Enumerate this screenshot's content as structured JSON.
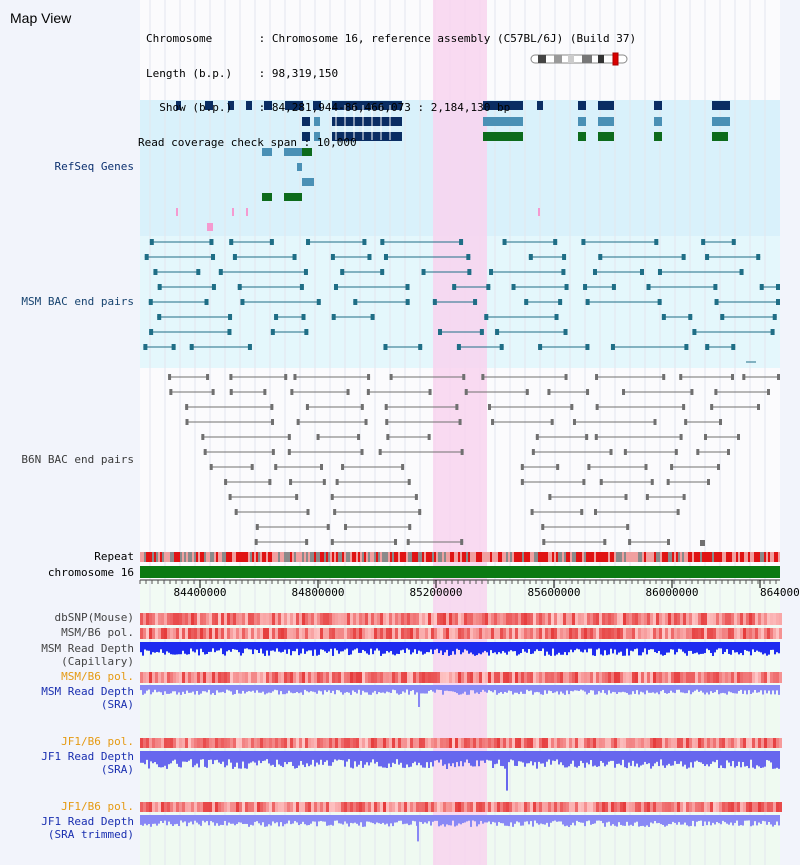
{
  "view_title": "Map View",
  "info": [
    {
      "label": "Chromosome       ",
      "value": "Chromosome 16, reference assembly (C57BL/6J) (Build 37)"
    },
    {
      "label": "Length (b.p.)    ",
      "value": "98,319,150"
    },
    {
      "label": "  Show (b.p.)    ",
      "value": "84,281,944-86,466,073 : 2,184,130 bp"
    },
    {
      "label": "Read coverage check span ",
      "value": "10,000"
    }
  ],
  "tracks": {
    "refseq": "RefSeq Genes",
    "msm_bac": "MSM BAC end pairs",
    "b6n_bac": "B6N BAC end pairs",
    "repeat": "Repeat",
    "chromosome": "chromosome 16",
    "dbsnp": "dbSNP(Mouse)",
    "msm_b6_pol": "MSM/B6 pol.",
    "msm_depth_cap_1": "MSM Read Depth",
    "msm_depth_cap_2": "(Capillary)",
    "msm_b6_pol_sra": "MSM/B6 pol.",
    "msm_depth_sra_1": "MSM Read Depth",
    "msm_depth_sra_2": "(SRA)",
    "jf1_b6_pol_1": "JF1/B6 pol.",
    "jf1_depth_sra_1": "JF1 Read Depth",
    "jf1_depth_sra_2": "(SRA)",
    "jf1_b6_pol_2": "JF1/B6 pol.",
    "jf1_depth_trim_1": "JF1 Read Depth",
    "jf1_depth_trim_2": "(SRA trimmed)"
  },
  "axis_ticks": [
    "84400000",
    "84800000",
    "85200000",
    "85600000",
    "86000000",
    "864000"
  ],
  "colors": {
    "refseq_bg": "#d9f1fb",
    "msm_bg": "#e4f7fc",
    "highlight": "#f8d4ef",
    "gene_dark": "#0a2d63",
    "gene_mid": "#4a90b5",
    "gene_green": "#0d6b1c",
    "bac_teal": "#1f6e86",
    "bac_gray": "#707070",
    "chrom_green": "#0b7a12",
    "depth_blue": "#1e2cf0",
    "depth_light": "#8888f5",
    "pol_red": "#e9463c"
  }
}
